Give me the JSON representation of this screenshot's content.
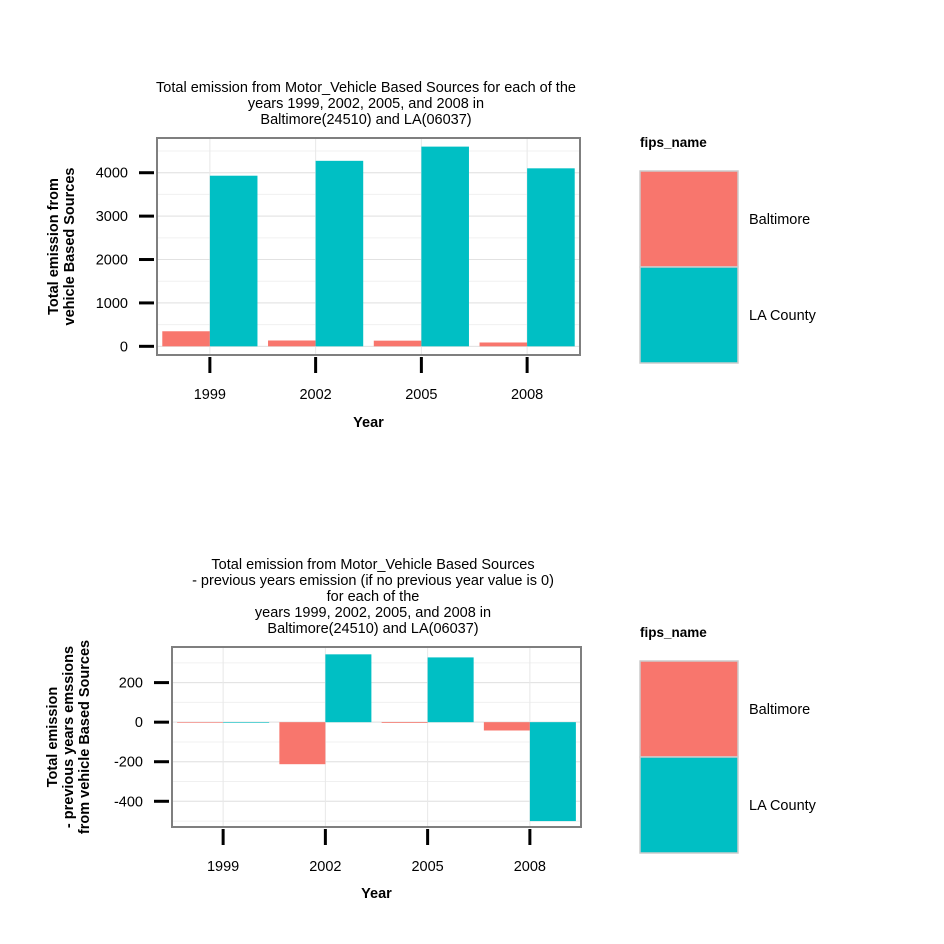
{
  "chart_data": [
    {
      "type": "bar",
      "title": [
        "Total emission from Motor_Vehicle Based Sources for each of the",
        "years 1999, 2002, 2005, and 2008 in",
        "Baltimore(24510) and LA(06037)"
      ],
      "xlabel": "Year",
      "ylabel": [
        "Total emission from",
        "vehicle Based Sources"
      ],
      "categories": [
        "1999",
        "2002",
        "2005",
        "2008"
      ],
      "series": [
        {
          "name": "Baltimore",
          "color": "#F8766D",
          "values": [
            346.82,
            134.31,
            130.43,
            88.28
          ]
        },
        {
          "name": "LA County",
          "color": "#00BFC4",
          "values": [
            3931.12,
            4274.03,
            4601.41,
            4101.32
          ]
        }
      ],
      "yticks": [
        0,
        1000,
        2000,
        3000,
        4000
      ],
      "ylim": [
        -200,
        4800
      ],
      "grid": true,
      "legend": {
        "title": "fips_name",
        "position": "right"
      }
    },
    {
      "type": "bar",
      "title": [
        "Total emission from Motor_Vehicle Based Sources",
        "- previous years emission (if no previous year value is 0)",
        "for each of the",
        "years 1999, 2002, 2005, and 2008 in",
        "Baltimore(24510) and LA(06037)"
      ],
      "xlabel": "Year",
      "ylabel": [
        "Total emission",
        "- previous years emssions",
        "from vehicle Based Sources"
      ],
      "categories": [
        "1999",
        "2002",
        "2005",
        "2008"
      ],
      "series": [
        {
          "name": "Baltimore",
          "color": "#F8766D",
          "values": [
            0,
            -212.5,
            -3.9,
            -42.1
          ]
        },
        {
          "name": "LA County",
          "color": "#00BFC4",
          "values": [
            0,
            342.9,
            327.4,
            -500.1
          ]
        }
      ],
      "yticks": [
        -400,
        -200,
        0,
        200
      ],
      "ylim": [
        -530,
        380
      ],
      "grid": true,
      "legend": {
        "title": "fips_name",
        "position": "right"
      }
    }
  ]
}
